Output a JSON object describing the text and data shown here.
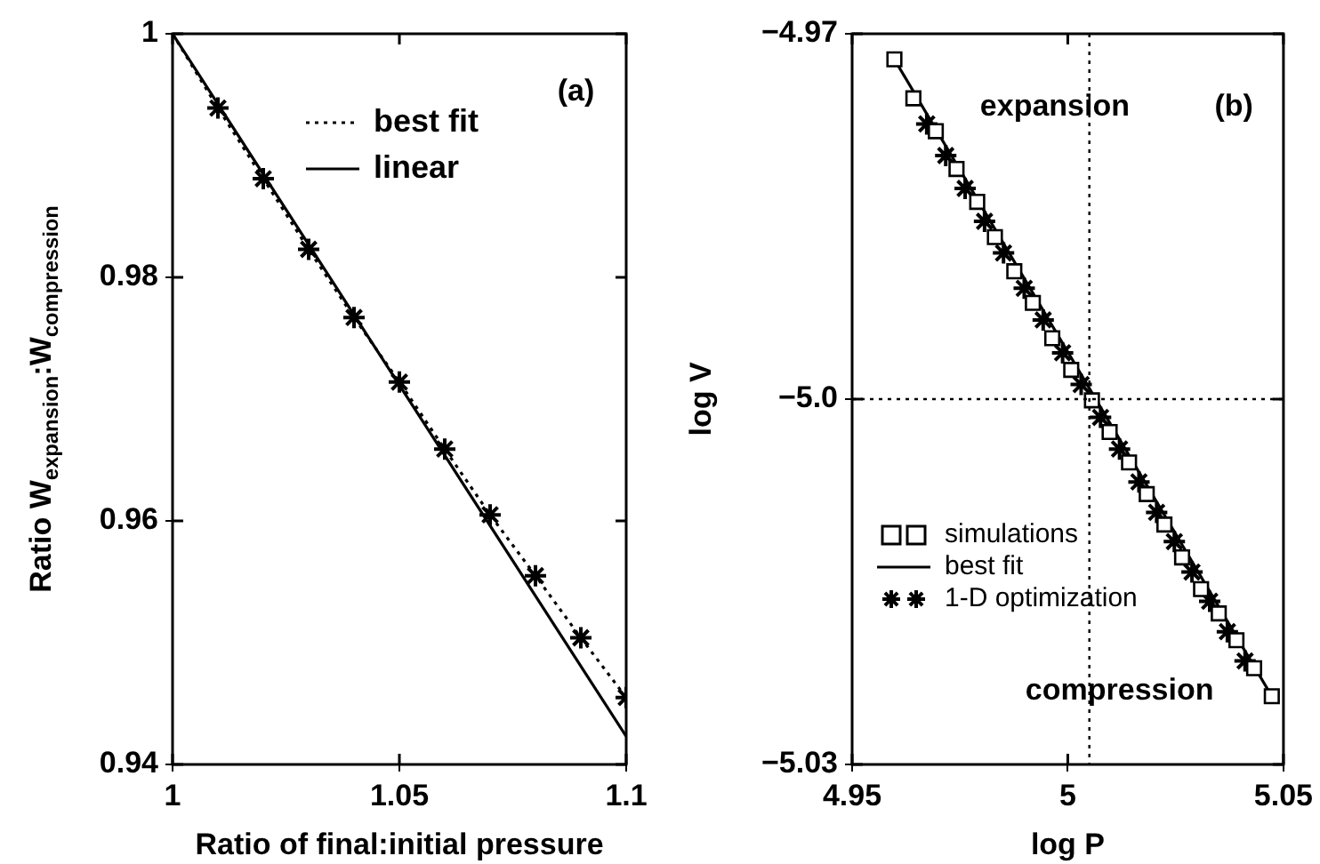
{
  "chart_data": [
    {
      "type": "line",
      "xlabel": "Ratio of final:initial pressure",
      "ylabel": "Ratio W$_{expansion}$:W$_{compression}$",
      "xlim": [
        1,
        1.1
      ],
      "ylim": [
        0.94,
        1
      ],
      "xticks": [
        1,
        1.05,
        1.1
      ],
      "yticks": [
        0.94,
        0.96,
        0.98,
        1
      ],
      "grid": false,
      "legend": "top right",
      "annotations": [
        "(a)"
      ],
      "series": [
        {
          "type": "scatter",
          "color": "#000000",
          "marker": "cross",
          "x": [
            1.01,
            1.02,
            1.03,
            1.04,
            1.05,
            1.06,
            1.07,
            1.08,
            1.09,
            1.1
          ],
          "values": [
            0.9939,
            0.9881,
            0.9823,
            0.9767,
            0.9714,
            0.9659,
            0.9605,
            0.9555,
            0.9504,
            0.9455
          ]
        },
        {
          "type": "line",
          "name": "best fit",
          "color": "#000000",
          "marker": "none",
          "line_style": "dotted",
          "x": [
            1,
            1.01,
            1.02,
            1.03,
            1.04,
            1.05,
            1.06,
            1.07,
            1.08,
            1.09,
            1.1
          ],
          "values": [
            1,
            0.9939,
            0.9881,
            0.9823,
            0.9767,
            0.9714,
            0.9659,
            0.9605,
            0.9555,
            0.9504,
            0.9455
          ]
        },
        {
          "type": "line",
          "name": "linear",
          "color": "#000000",
          "marker": "none",
          "line_style": "solid",
          "x": [
            1,
            1.1
          ],
          "values": [
            1,
            0.9423
          ]
        }
      ]
    },
    {
      "type": "line",
      "xlabel": "log P",
      "ylabel": "log V",
      "xlim": [
        4.95,
        5.05
      ],
      "ylim": [
        -5.03,
        -4.97
      ],
      "xticks": [
        4.95,
        5,
        5.05
      ],
      "yticks": [
        {
          "value": -5.03,
          "label": "−5.03"
        },
        {
          "value": -5.0,
          "label": "−5.0"
        },
        {
          "value": -4.97,
          "label": "−4.97"
        }
      ],
      "grid": false,
      "legend": "bottom left",
      "annotations": [
        "(b)",
        "expansion",
        "compression"
      ],
      "ref_lines": [
        {
          "axis": "x",
          "value": 5.005,
          "line_style": "dotted"
        },
        {
          "axis": "y",
          "value": -5.0,
          "line_style": "dotted"
        }
      ],
      "series": [
        {
          "type": "scatter",
          "name": "simulations",
          "color": "#000000",
          "marker": "square",
          "x": [
            4.9598,
            4.9642,
            4.9694,
            4.9742,
            4.979,
            4.9831,
            4.9876,
            4.9919,
            4.9964,
            5.0008,
            5.0056,
            5.0097,
            5.0142,
            5.0183,
            5.0224,
            5.0265,
            5.0309,
            5.035,
            5.0391,
            5.0432,
            5.0473
          ],
          "values": [
            -4.9721,
            -4.9753,
            -4.978,
            -4.9811,
            -4.9838,
            -4.9867,
            -4.9895,
            -4.9921,
            -4.995,
            -4.9976,
            -5.0001,
            -5.0027,
            -5.0052,
            -5.0078,
            -5.0103,
            -5.013,
            -5.0156,
            -5.0176,
            -5.0198,
            -5.0221,
            -5.0244
          ]
        },
        {
          "type": "line",
          "name": "best fit",
          "color": "#000000",
          "marker": "none",
          "line_style": "solid",
          "x": [
            4.9598,
            5.0473
          ],
          "values": [
            -4.9721,
            -5.0244
          ]
        },
        {
          "type": "scatter",
          "name": "1-D optimization",
          "color": "#000000",
          "marker": "cross",
          "x": [
            4.9673,
            4.9717,
            4.9762,
            4.9807,
            4.9851,
            4.9899,
            4.9943,
            4.9988,
            5.0031,
            5.0076,
            5.012,
            5.0165,
            5.0206,
            5.0247,
            5.0288,
            5.0329,
            5.037,
            5.0411
          ],
          "values": [
            -4.9774,
            -4.98,
            -4.9827,
            -4.9854,
            -4.988,
            -4.9909,
            -4.9935,
            -4.9962,
            -4.9988,
            -5.0015,
            -5.0041,
            -5.0068,
            -5.0093,
            -5.0117,
            -5.0142,
            -5.0166,
            -5.0191,
            -5.0215
          ]
        }
      ]
    }
  ]
}
